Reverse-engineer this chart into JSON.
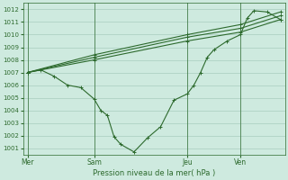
{
  "bg_color": "#ceeadf",
  "grid_color": "#a8ccbe",
  "line_color": "#2d6a2d",
  "title": "Pression niveau de la mer( hPa )",
  "yticks": [
    1001,
    1002,
    1003,
    1004,
    1005,
    1006,
    1007,
    1008,
    1009,
    1010,
    1011,
    1012
  ],
  "ylim": [
    1000.5,
    1012.5
  ],
  "xtick_labels": [
    "Mer",
    "Sam",
    "Jeu",
    "Ven"
  ],
  "xtick_positions": [
    0,
    30,
    72,
    96
  ],
  "xlim": [
    -2,
    116
  ],
  "vlines": [
    0,
    30,
    72,
    96
  ],
  "series_jagged_x": [
    0,
    6,
    12,
    18,
    24,
    30,
    33,
    36,
    39,
    42,
    48,
    54,
    60,
    66,
    72,
    75,
    78,
    81,
    84,
    90,
    96,
    99,
    102,
    108,
    114
  ],
  "series_jagged_y": [
    1007.0,
    1007.2,
    1006.7,
    1006.0,
    1005.8,
    1004.9,
    1004.0,
    1003.6,
    1001.9,
    1001.3,
    1000.7,
    1001.8,
    1002.7,
    1004.8,
    1005.3,
    1006.0,
    1007.0,
    1008.2,
    1008.8,
    1009.5,
    1010.0,
    1011.3,
    1011.9,
    1011.8,
    1011.2
  ],
  "series_band1_x": [
    0,
    30,
    72,
    96,
    114
  ],
  "series_band1_y": [
    1007.0,
    1008.0,
    1009.5,
    1010.2,
    1011.2
  ],
  "series_band2_x": [
    0,
    30,
    72,
    96,
    114
  ],
  "series_band2_y": [
    1007.0,
    1008.2,
    1009.8,
    1010.5,
    1011.5
  ],
  "series_band3_x": [
    0,
    30,
    72,
    96,
    114
  ],
  "series_band3_y": [
    1007.0,
    1008.4,
    1010.0,
    1010.8,
    1011.8
  ]
}
